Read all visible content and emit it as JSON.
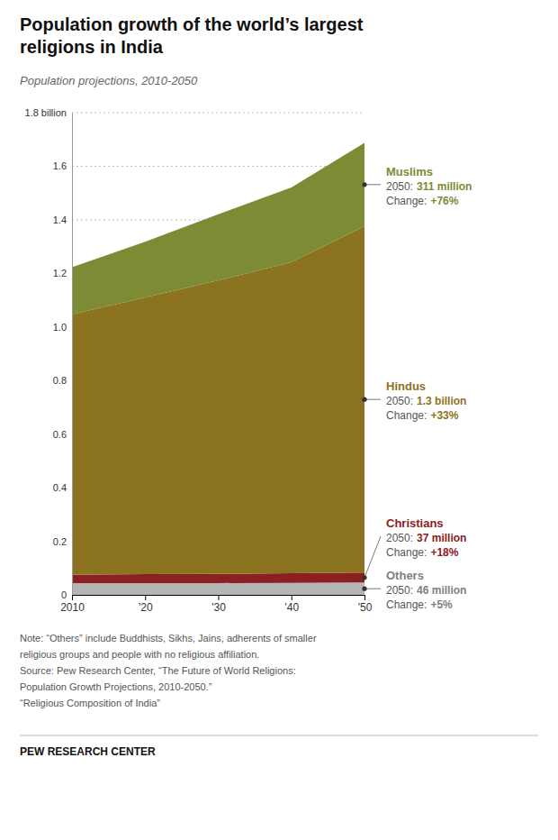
{
  "chart_data": {
    "type": "area",
    "stacked": true,
    "title": [
      "Population growth of the world’s largest",
      "religions in India"
    ],
    "subtitle": "Population projections, 2010-2050",
    "x": [
      2010,
      2020,
      2030,
      2040,
      2050
    ],
    "xlim": [
      2010,
      2050
    ],
    "xticks": [
      2010,
      {
        "value": 2020,
        "label": "'20"
      },
      {
        "value": 2030,
        "label": "'30"
      },
      {
        "value": 2040,
        "label": "'40"
      },
      {
        "value": 2050,
        "label": "'50"
      }
    ],
    "ylim": [
      0,
      1.8
    ],
    "yticks": [
      0,
      0.2,
      0.4,
      0.6,
      0.8,
      {
        "value": 1.0,
        "label": "1.0"
      },
      1.2,
      1.4,
      1.6,
      {
        "value": 1.8,
        "label": "1.8 billion"
      }
    ],
    "grid": true,
    "series": [
      {
        "name": "Others",
        "color": "#b5b5b5",
        "values": [
          0.044,
          0.044,
          0.044,
          0.045,
          0.046
        ],
        "value_labels": [
          null,
          null,
          null,
          null,
          "46 million"
        ],
        "change": "+5%"
      },
      {
        "name": "Christians",
        "color": "#8b2020",
        "values": [
          0.031,
          0.033,
          0.034,
          0.036,
          0.037
        ],
        "value_labels": [
          null,
          null,
          null,
          null,
          "37 million"
        ],
        "change": "+18%"
      },
      {
        "name": "Hindus",
        "color": "#8b7320",
        "values": [
          0.972,
          1.033,
          1.096,
          1.161,
          1.293
        ],
        "value_labels": [
          null,
          null,
          null,
          null,
          "1.3 billion"
        ],
        "change": "+33%"
      },
      {
        "name": "Muslims",
        "color": "#7d8b35",
        "values": [
          0.176,
          0.208,
          0.247,
          0.279,
          0.311
        ],
        "value_labels": [
          null,
          null,
          null,
          null,
          "311 million"
        ],
        "change": "+76%"
      }
    ],
    "annotations": {
      "value_prefix": "2050:",
      "change_prefix": "Change:"
    },
    "notes": [
      "Note: “Others” include Buddhists, Sikhs, Jains, adherents of smaller",
      "religious groups and people with no religious affiliation.",
      "Source: Pew Research Center, “The Future of World Religions:",
      "Population Growth Projections, 2010-2050.”",
      "“Religious Composition of India”"
    ],
    "source": "PEW RESEARCH CENTER"
  }
}
